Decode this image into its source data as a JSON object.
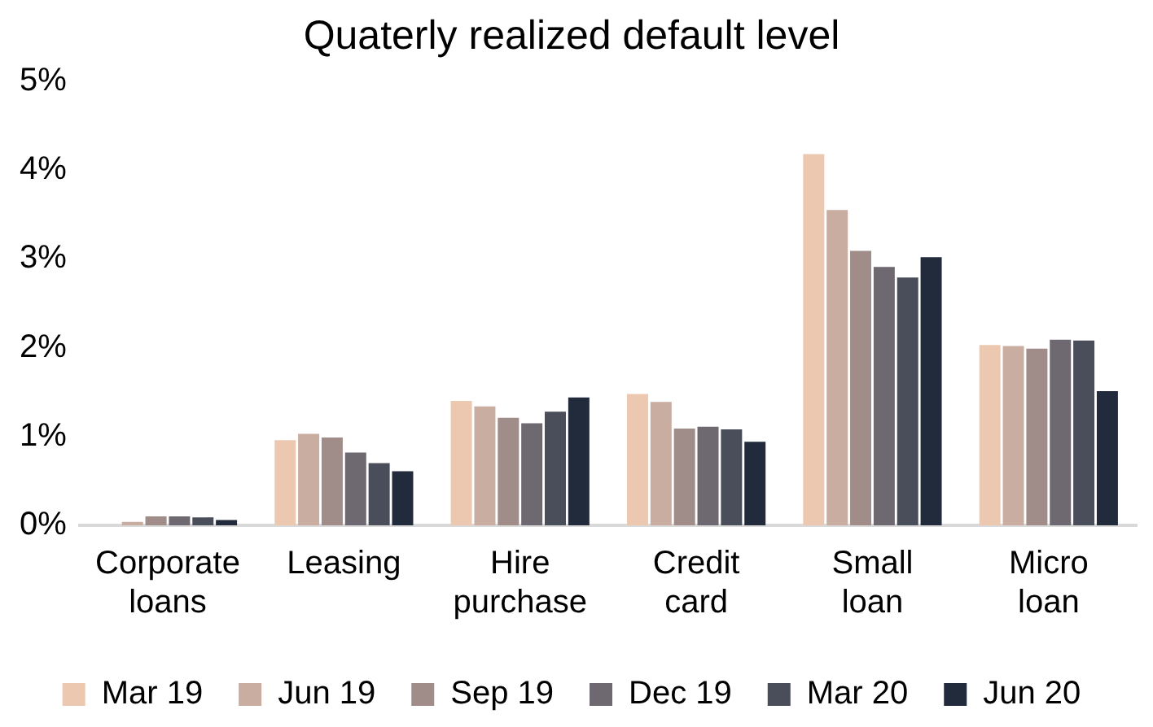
{
  "chart_data": {
    "type": "bar",
    "title": "Quaterly realized default level",
    "categories": [
      "Corporate loans",
      "Leasing",
      "Hire purchase",
      "Credit card",
      "Small loan",
      "Micro loan"
    ],
    "series": [
      {
        "name": "Mar 19",
        "color": "#edc8b0",
        "values": [
          null,
          0.96,
          1.4,
          1.48,
          4.18,
          2.03
        ]
      },
      {
        "name": "Jun 19",
        "color": "#c9ada1",
        "values": [
          0.04,
          1.03,
          1.34,
          1.39,
          3.55,
          2.02
        ]
      },
      {
        "name": "Sep 19",
        "color": "#a08d89",
        "values": [
          0.1,
          0.99,
          1.21,
          1.09,
          3.09,
          1.99
        ]
      },
      {
        "name": "Dec 19",
        "color": "#6e6870",
        "values": [
          0.1,
          0.82,
          1.15,
          1.11,
          2.91,
          2.09
        ]
      },
      {
        "name": "Mar 20",
        "color": "#4a4d5a",
        "values": [
          0.09,
          0.7,
          1.28,
          1.08,
          2.79,
          2.08
        ]
      },
      {
        "name": "Jun 20",
        "color": "#212b3b",
        "values": [
          0.06,
          0.61,
          1.44,
          0.94,
          3.02,
          1.51
        ]
      }
    ],
    "ylim": [
      0,
      5
    ],
    "yticks": [
      {
        "value": 0,
        "label": "0%"
      },
      {
        "value": 1,
        "label": "1%"
      },
      {
        "value": 2,
        "label": "2%"
      },
      {
        "value": 3,
        "label": "3%"
      },
      {
        "value": 4,
        "label": "4%"
      },
      {
        "value": 5,
        "label": "5%"
      }
    ],
    "grid": false,
    "legend": "bottom"
  }
}
